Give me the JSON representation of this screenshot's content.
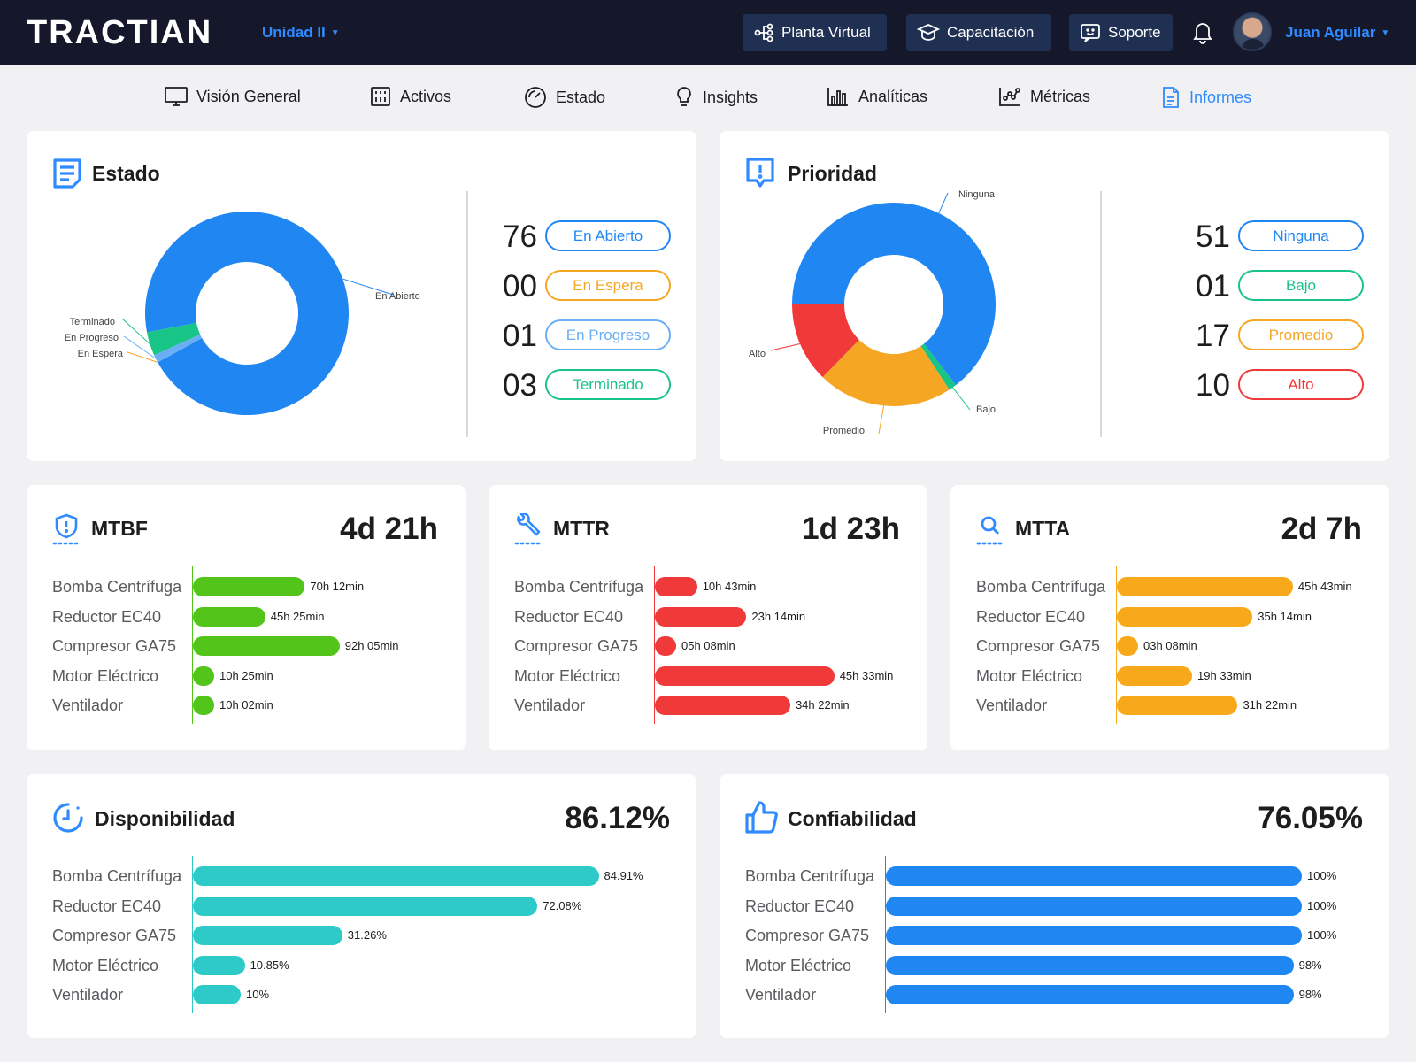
{
  "app": {
    "logo": "TRACTIAN",
    "unit": "Unidad II",
    "buttons": {
      "planta": "Planta Virtual",
      "capacitacion": "Capacitación",
      "soporte": "Soporte"
    },
    "user_name": "Juan Aguilar"
  },
  "nav": [
    "Visión General",
    "Activos",
    "Estado",
    "Insights",
    "Analíticas",
    "Métricas",
    "Informes"
  ],
  "nav_active": "Informes",
  "estado": {
    "title": "Estado",
    "counts": [
      {
        "count": "76",
        "label": "En Abierto",
        "color": "#1f86f2"
      },
      {
        "count": "00",
        "label": "En Espera",
        "color": "#f5a623"
      },
      {
        "count": "01",
        "label": "En Progreso",
        "color": "#6aaef6"
      },
      {
        "count": "03",
        "label": "Terminado",
        "color": "#18c586"
      }
    ],
    "donut_labels": [
      "En Abierto",
      "Terminado",
      "En Progreso",
      "En Espera"
    ]
  },
  "prioridad": {
    "title": "Prioridad",
    "counts": [
      {
        "count": "51",
        "label": "Ninguna",
        "color": "#1f86f2"
      },
      {
        "count": "01",
        "label": "Bajo",
        "color": "#18c586"
      },
      {
        "count": "17",
        "label": "Promedio",
        "color": "#f5a623"
      },
      {
        "count": "10",
        "label": "Alto",
        "color": "#f03a3a"
      }
    ],
    "donut_labels": [
      "Ninguna",
      "Alto",
      "Bajo",
      "Promedio"
    ]
  },
  "chart_data": [
    {
      "type": "pie",
      "title": "Estado",
      "categories": [
        "En Abierto",
        "En Espera",
        "En Progreso",
        "Terminado"
      ],
      "values": [
        76,
        0,
        1,
        3
      ],
      "colors": [
        "#1f86f2",
        "#f5a623",
        "#6aaef6",
        "#18c586"
      ]
    },
    {
      "type": "pie",
      "title": "Prioridad",
      "categories": [
        "Ninguna",
        "Bajo",
        "Promedio",
        "Alto"
      ],
      "values": [
        51,
        1,
        17,
        10
      ],
      "colors": [
        "#1f86f2",
        "#18c586",
        "#f5a623",
        "#f03a3a"
      ]
    },
    {
      "type": "bar",
      "title": "MTBF",
      "total": "4d 21h",
      "categories": [
        "Bomba Centrífuga",
        "Reductor EC40",
        "Compresor GA75",
        "Motor Eléctrico",
        "Ventilador"
      ],
      "values_hours": [
        70.2,
        45.42,
        92.08,
        10.42,
        10.03
      ],
      "labels": [
        "70h 12min",
        "45h 25min",
        "92h 05min",
        "10h 25min",
        "10h 02min"
      ],
      "color": "#52c41a"
    },
    {
      "type": "bar",
      "title": "MTTR",
      "total": "1d 23h",
      "categories": [
        "Bomba Centrífuga",
        "Reductor EC40",
        "Compresor GA75",
        "Motor Eléctrico",
        "Ventilador"
      ],
      "values_hours": [
        10.72,
        23.23,
        5.13,
        45.55,
        34.37
      ],
      "labels": [
        "10h 43min",
        "23h 14min",
        "05h 08min",
        "45h 33min",
        "34h 22min"
      ],
      "color": "#f03a3a"
    },
    {
      "type": "bar",
      "title": "MTTA",
      "total": "2d 7h",
      "categories": [
        "Bomba Centrífuga",
        "Reductor EC40",
        "Compresor GA75",
        "Motor Eléctrico",
        "Ventilador"
      ],
      "values_hours": [
        45.72,
        35.23,
        3.13,
        19.55,
        31.37
      ],
      "labels": [
        "45h 43min",
        "35h 14min",
        "03h 08min",
        "19h 33min",
        "31h 22min"
      ],
      "color": "#f7a91b"
    },
    {
      "type": "bar",
      "title": "Disponibilidad",
      "total": "86.12%",
      "categories": [
        "Bomba Centrífuga",
        "Reductor EC40",
        "Compresor GA75",
        "Motor Eléctrico",
        "Ventilador"
      ],
      "values": [
        84.91,
        72.08,
        31.26,
        10.85,
        10
      ],
      "labels": [
        "84.91%",
        "72.08%",
        "31.26%",
        "10.85%",
        "10%"
      ],
      "color": "#2ecac8"
    },
    {
      "type": "bar",
      "title": "Confiabilidad",
      "total": "76.05%",
      "categories": [
        "Bomba Centrífuga",
        "Reductor EC40",
        "Compresor GA75",
        "Motor Eléctrico",
        "Ventilador"
      ],
      "values": [
        100,
        100,
        100,
        98,
        98
      ],
      "labels": [
        "100%",
        "100%",
        "100%",
        "98%",
        "98%"
      ],
      "color": "#1f86f2"
    }
  ]
}
